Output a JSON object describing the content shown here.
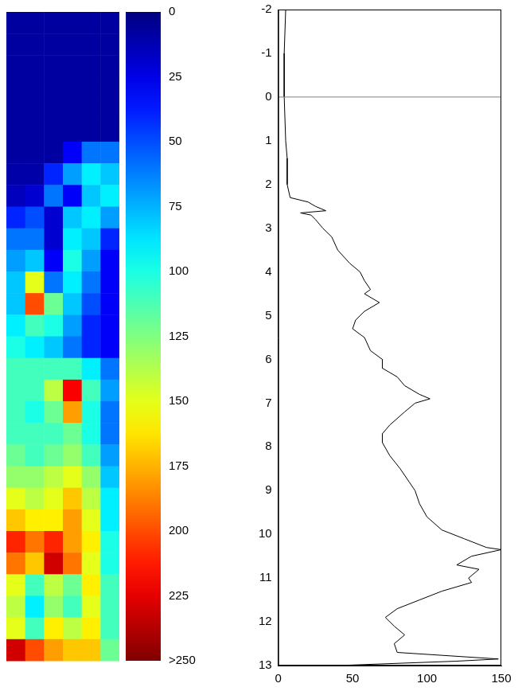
{
  "chart_data": [
    {
      "type": "heatmap",
      "cells": [
        [
          8,
          8,
          8,
          8,
          8,
          8
        ],
        [
          8,
          8,
          8,
          8,
          8,
          8
        ],
        [
          8,
          8,
          8,
          8,
          8,
          8
        ],
        [
          8,
          8,
          8,
          8,
          8,
          8
        ],
        [
          8,
          8,
          8,
          8,
          8,
          8
        ],
        [
          8,
          8,
          8,
          8,
          8,
          8
        ],
        [
          8,
          8,
          8,
          30,
          60,
          60
        ],
        [
          10,
          10,
          40,
          70,
          90,
          80
        ],
        [
          15,
          20,
          60,
          30,
          80,
          90
        ],
        [
          40,
          50,
          20,
          80,
          90,
          70
        ],
        [
          60,
          60,
          20,
          90,
          80,
          40
        ],
        [
          70,
          80,
          30,
          100,
          70,
          30
        ],
        [
          80,
          150,
          60,
          90,
          60,
          30
        ],
        [
          80,
          200,
          120,
          80,
          50,
          30
        ],
        [
          90,
          110,
          100,
          70,
          40,
          30
        ],
        [
          100,
          90,
          80,
          60,
          40,
          30
        ],
        [
          110,
          110,
          110,
          110,
          90,
          60
        ],
        [
          110,
          110,
          140,
          220,
          110,
          70
        ],
        [
          110,
          100,
          120,
          180,
          100,
          60
        ],
        [
          110,
          110,
          110,
          120,
          100,
          60
        ],
        [
          120,
          110,
          120,
          130,
          110,
          70
        ],
        [
          130,
          130,
          140,
          150,
          130,
          80
        ],
        [
          150,
          140,
          150,
          170,
          140,
          90
        ],
        [
          170,
          160,
          160,
          180,
          150,
          90
        ],
        [
          210,
          190,
          210,
          180,
          160,
          100
        ],
        [
          190,
          170,
          230,
          190,
          150,
          100
        ],
        [
          150,
          110,
          140,
          120,
          160,
          110
        ],
        [
          140,
          90,
          130,
          110,
          150,
          110
        ],
        [
          150,
          110,
          160,
          140,
          160,
          110
        ],
        [
          230,
          200,
          180,
          170,
          170,
          120
        ]
      ],
      "colorbar_range": [
        0,
        250
      ],
      "colorbar_ticks": [
        0,
        25,
        50,
        75,
        100,
        125,
        150,
        175,
        200,
        225,
        {
          "value": 250,
          "label": ">250"
        }
      ]
    },
    {
      "type": "line",
      "color": "#000000",
      "x": [
        5,
        4,
        4,
        5,
        6,
        6,
        8,
        20,
        25,
        32,
        15,
        22,
        25,
        30,
        36,
        40,
        48,
        55,
        58,
        62,
        58,
        68,
        58,
        52,
        50,
        58,
        62,
        70,
        70,
        80,
        85,
        95,
        102,
        92,
        85,
        75,
        70,
        70,
        75,
        82,
        88,
        92,
        95,
        100,
        110,
        125,
        140,
        150,
        130,
        120,
        135,
        128,
        130,
        110,
        95,
        80,
        72,
        78,
        85,
        78,
        80,
        148,
        120,
        40
      ],
      "y": [
        -2,
        -1,
        0,
        1,
        1.4,
        2,
        2.3,
        2.4,
        2.5,
        2.6,
        2.65,
        2.7,
        2.8,
        3.0,
        3.2,
        3.5,
        3.8,
        4.0,
        4.2,
        4.4,
        4.5,
        4.7,
        4.9,
        5.1,
        5.3,
        5.5,
        5.8,
        6.0,
        6.2,
        6.4,
        6.6,
        6.8,
        6.9,
        7.0,
        7.2,
        7.5,
        7.7,
        7.9,
        8.2,
        8.5,
        8.8,
        9.0,
        9.3,
        9.6,
        9.9,
        10.1,
        10.3,
        10.35,
        10.5,
        10.7,
        10.8,
        11.0,
        11.1,
        11.3,
        11.5,
        11.7,
        11.9,
        12.1,
        12.3,
        12.5,
        12.7,
        12.85,
        12.9,
        13.0
      ],
      "xlim": [
        0,
        150
      ],
      "xticks": [
        0,
        50,
        100,
        150
      ],
      "ylim": [
        13,
        -2
      ],
      "yticks": [
        -2,
        -1,
        0,
        1,
        2,
        3,
        4,
        5,
        6,
        7,
        8,
        9,
        10,
        11,
        12,
        13
      ],
      "hline": 0,
      "grid": false
    }
  ]
}
